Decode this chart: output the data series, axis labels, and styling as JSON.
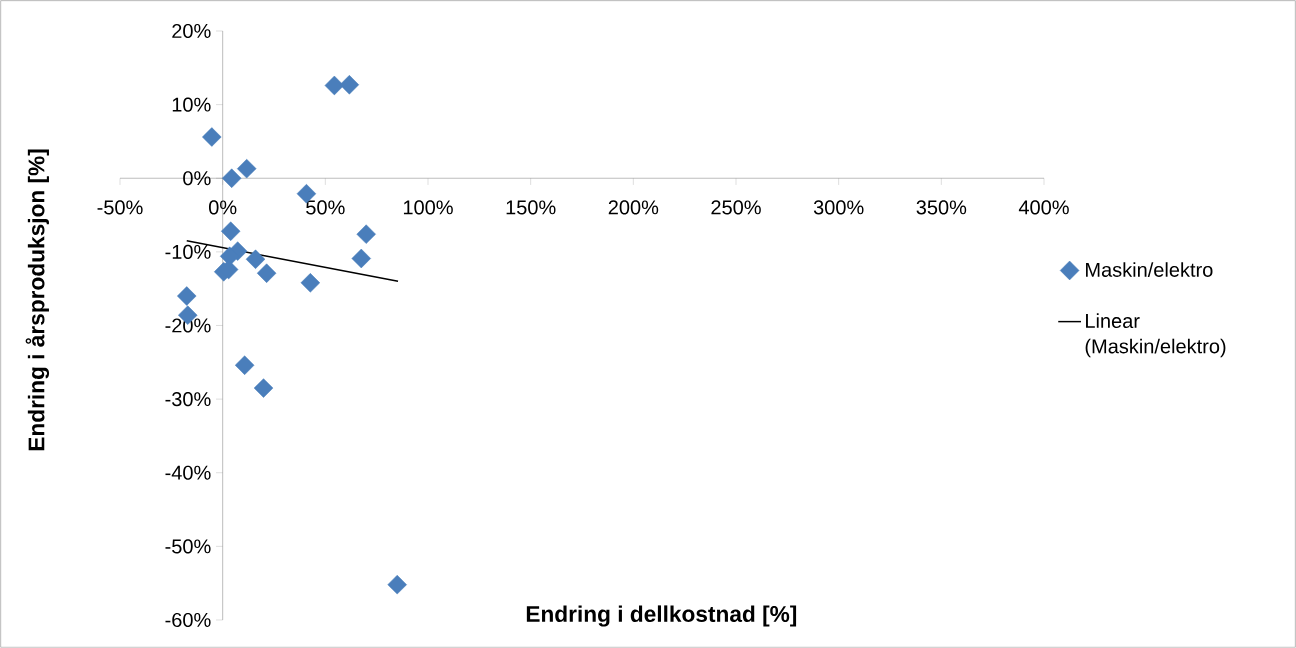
{
  "chart_data": {
    "type": "scatter",
    "xlabel": "Endring i dellkostnad [%]",
    "ylabel": "Endring i årsproduksjon [%]",
    "xlim": [
      -50,
      400
    ],
    "ylim": [
      -60,
      20
    ],
    "xticks": [
      {
        "value": -50,
        "label": "-50%"
      },
      {
        "value": 0,
        "label": "0%"
      },
      {
        "value": 50,
        "label": "50%"
      },
      {
        "value": 100,
        "label": "100%"
      },
      {
        "value": 150,
        "label": "150%"
      },
      {
        "value": 200,
        "label": "200%"
      },
      {
        "value": 250,
        "label": "250%"
      },
      {
        "value": 300,
        "label": "300%"
      },
      {
        "value": 350,
        "label": "350%"
      },
      {
        "value": 400,
        "label": "400%"
      }
    ],
    "yticks": [
      {
        "value": -60,
        "label": "-60%"
      },
      {
        "value": -50,
        "label": "-50%"
      },
      {
        "value": -40,
        "label": "-40%"
      },
      {
        "value": -30,
        "label": "-30%"
      },
      {
        "value": -20,
        "label": "-20%"
      },
      {
        "value": -10,
        "label": "-10%"
      },
      {
        "value": 0,
        "label": "0%"
      },
      {
        "value": 10,
        "label": "10%"
      },
      {
        "value": 20,
        "label": "20%"
      }
    ],
    "legend": "right",
    "series": [
      {
        "name": "Maskin/elektro",
        "marker": "diamond",
        "color": "#4a7ebb",
        "x": [
          -5.3,
          4.4,
          11.7,
          54.4,
          61.7,
          40.8,
          3.9,
          7.3,
          3.4,
          0.5,
          2.9,
          16.0,
          21.4,
          42.7,
          69.9,
          67.5,
          -17.5,
          -17.0,
          10.7,
          19.9,
          85.0
        ],
        "values": [
          5.6,
          0.0,
          1.3,
          12.6,
          12.7,
          -2.1,
          -7.2,
          -9.9,
          -10.6,
          -12.7,
          -12.4,
          -11.0,
          -12.9,
          -14.2,
          -7.6,
          -10.9,
          -16.0,
          -18.6,
          -25.4,
          -28.5,
          -55.2
        ]
      },
      {
        "name": "Linear (Maskin/elektro)",
        "type": "line",
        "marker": "none",
        "color": "#000000",
        "x": [
          -17.5,
          85.4
        ],
        "values": [
          -8.5,
          -14.0
        ]
      }
    ]
  }
}
